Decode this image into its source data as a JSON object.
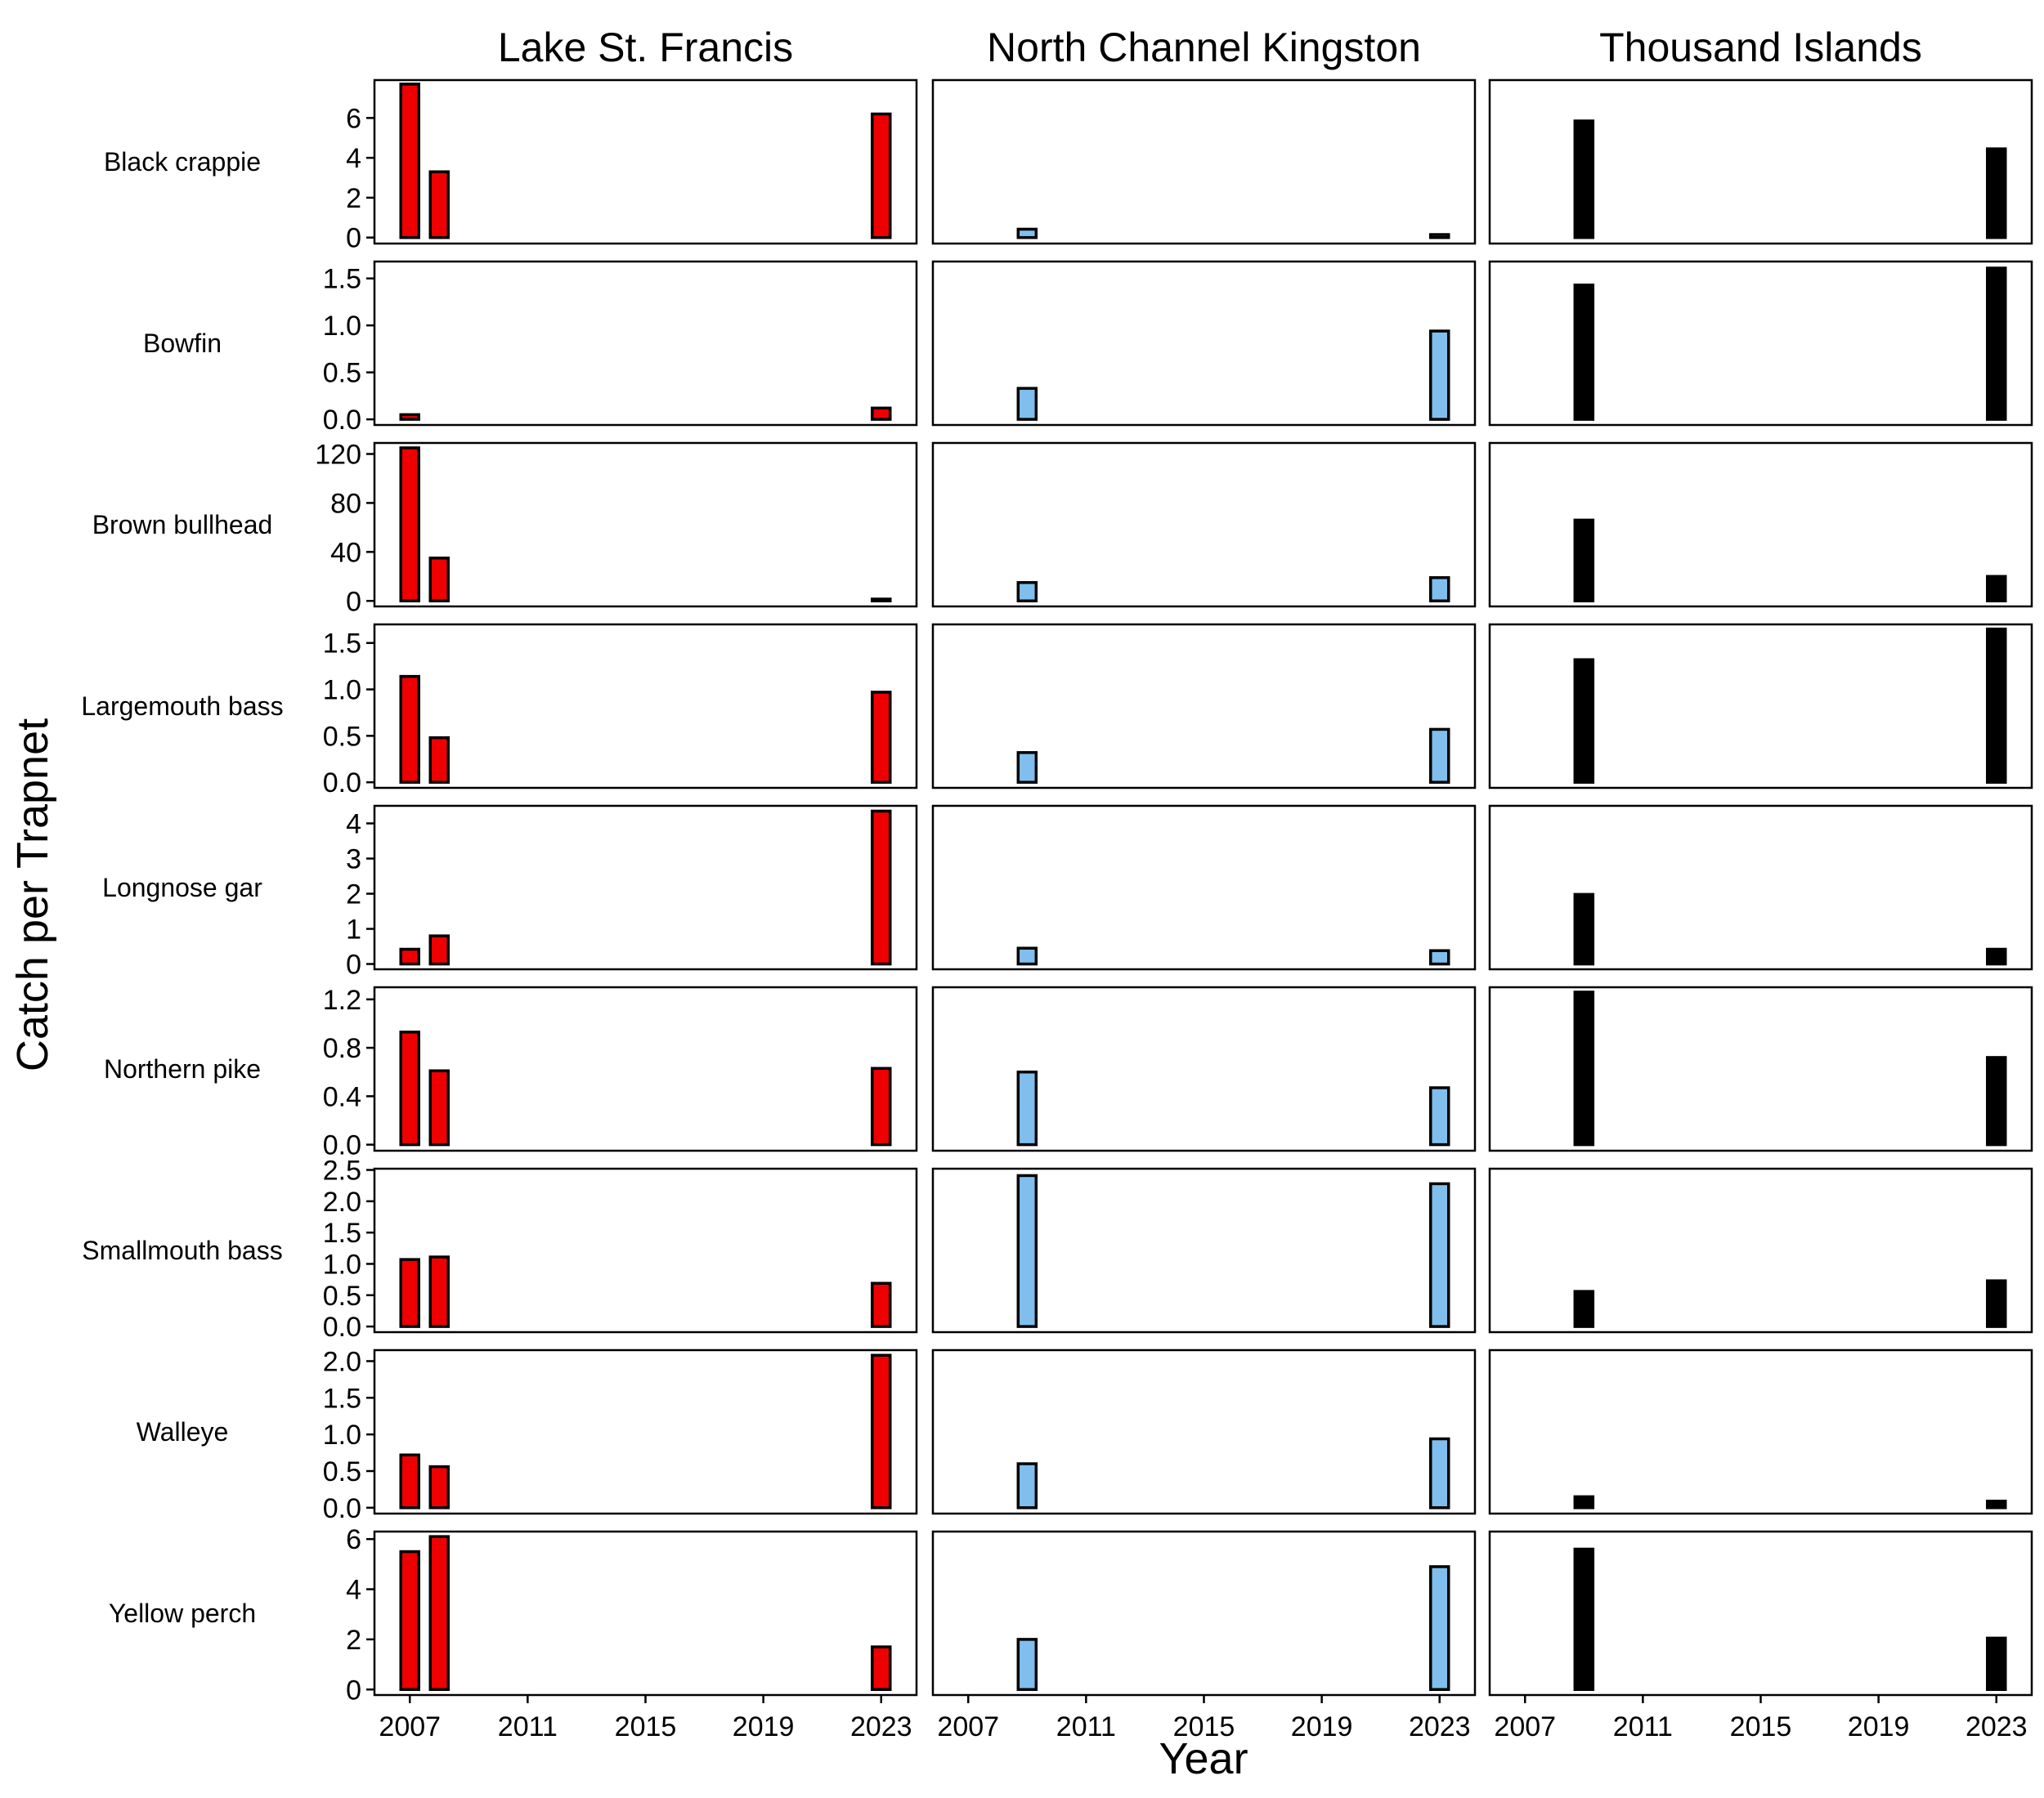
{
  "chart_data": {
    "type": "bar",
    "xlabel": "Year",
    "ylabel": "Catch per Trapnet",
    "x_ticks": [
      2007,
      2011,
      2015,
      2019,
      2023
    ],
    "xlim": [
      2005.8,
      2024.2
    ],
    "columns": [
      "Lake St. Francis",
      "North Channel Kingston",
      "Thousand Islands"
    ],
    "colors": [
      "#ee0000",
      "#80bfed",
      "#000000"
    ],
    "rows": [
      {
        "species": "Black crappie",
        "ylim": [
          -0.3,
          7.9
        ],
        "y_ticks": [
          0,
          2,
          4,
          6
        ],
        "y_tick_labels": [
          "0",
          "2",
          "4",
          "6"
        ],
        "series": [
          {
            "name": "Lake St. Francis",
            "x": [
              2007,
              2008,
              2023
            ],
            "values": [
              7.7,
              3.3,
              6.2
            ]
          },
          {
            "name": "North Channel Kingston",
            "x": [
              2009,
              2023
            ],
            "values": [
              0.42,
              0.15
            ]
          },
          {
            "name": "Thousand Islands",
            "x": [
              2009,
              2023
            ],
            "values": [
              5.85,
              4.45
            ]
          }
        ]
      },
      {
        "species": "Bowfin",
        "ylim": [
          -0.06,
          1.68
        ],
        "y_ticks": [
          0,
          0.5,
          1,
          1.5
        ],
        "y_tick_labels": [
          "0.0",
          "0.5",
          "1.0",
          "1.5"
        ],
        "series": [
          {
            "name": "Lake St. Francis",
            "x": [
              2007,
              2023
            ],
            "values": [
              0.05,
              0.12
            ]
          },
          {
            "name": "North Channel Kingston",
            "x": [
              2009,
              2023
            ],
            "values": [
              0.33,
              0.94
            ]
          },
          {
            "name": "Thousand Islands",
            "x": [
              2009,
              2023
            ],
            "values": [
              1.43,
              1.61
            ]
          }
        ]
      },
      {
        "species": "Brown bullhead",
        "ylim": [
          -4.5,
          129
        ],
        "y_ticks": [
          0,
          40,
          80,
          120
        ],
        "y_tick_labels": [
          "0",
          "40",
          "80",
          "120"
        ],
        "series": [
          {
            "name": "Lake St. Francis",
            "x": [
              2007,
              2008,
              2023
            ],
            "values": [
              125,
              35,
              1.5
            ]
          },
          {
            "name": "North Channel Kingston",
            "x": [
              2009,
              2023
            ],
            "values": [
              15,
              19
            ]
          },
          {
            "name": "Thousand Islands",
            "x": [
              2009,
              2023
            ],
            "values": [
              66,
              20
            ]
          }
        ]
      },
      {
        "species": "Largemouth bass",
        "ylim": [
          -0.06,
          1.7
        ],
        "y_ticks": [
          0,
          0.5,
          1,
          1.5
        ],
        "y_tick_labels": [
          "0.0",
          "0.5",
          "1.0",
          "1.5"
        ],
        "series": [
          {
            "name": "Lake St. Francis",
            "x": [
              2007,
              2008,
              2023
            ],
            "values": [
              1.14,
              0.48,
              0.97
            ]
          },
          {
            "name": "North Channel Kingston",
            "x": [
              2009,
              2023
            ],
            "values": [
              0.32,
              0.57
            ]
          },
          {
            "name": "Thousand Islands",
            "x": [
              2009,
              2023
            ],
            "values": [
              1.32,
              1.65
            ]
          }
        ]
      },
      {
        "species": "Longnose gar",
        "ylim": [
          -0.15,
          4.5
        ],
        "y_ticks": [
          0,
          1,
          2,
          3,
          4
        ],
        "y_tick_labels": [
          "0",
          "1",
          "2",
          "3",
          "4"
        ],
        "series": [
          {
            "name": "Lake St. Francis",
            "x": [
              2007,
              2008,
              2023
            ],
            "values": [
              0.42,
              0.8,
              4.35
            ]
          },
          {
            "name": "North Channel Kingston",
            "x": [
              2009,
              2023
            ],
            "values": [
              0.45,
              0.38
            ]
          },
          {
            "name": "Thousand Islands",
            "x": [
              2009,
              2023
            ],
            "values": [
              1.98,
              0.42
            ]
          }
        ]
      },
      {
        "species": "Northern pike",
        "ylim": [
          -0.05,
          1.3
        ],
        "y_ticks": [
          0,
          0.4,
          0.8,
          1.2
        ],
        "y_tick_labels": [
          "0.0",
          "0.4",
          "0.8",
          "1.2"
        ],
        "series": [
          {
            "name": "Lake St. Francis",
            "x": [
              2007,
              2008,
              2023
            ],
            "values": [
              0.93,
              0.61,
              0.63
            ]
          },
          {
            "name": "North Channel Kingston",
            "x": [
              2009,
              2023
            ],
            "values": [
              0.6,
              0.47
            ]
          },
          {
            "name": "Thousand Islands",
            "x": [
              2009,
              2023
            ],
            "values": [
              1.26,
              0.72
            ]
          }
        ]
      },
      {
        "species": "Smallmouth bass",
        "ylim": [
          -0.09,
          2.52
        ],
        "y_ticks": [
          0,
          0.5,
          1,
          1.5,
          2,
          2.5
        ],
        "y_tick_labels": [
          "0.0",
          "0.5",
          "1.0",
          "1.5",
          "2.0",
          "2.5"
        ],
        "series": [
          {
            "name": "Lake St. Francis",
            "x": [
              2007,
              2008,
              2023
            ],
            "values": [
              1.07,
              1.11,
              0.69
            ]
          },
          {
            "name": "North Channel Kingston",
            "x": [
              2009,
              2023
            ],
            "values": [
              2.41,
              2.28
            ]
          },
          {
            "name": "Thousand Islands",
            "x": [
              2009,
              2023
            ],
            "values": [
              0.56,
              0.73
            ]
          }
        ]
      },
      {
        "species": "Walleye",
        "ylim": [
          -0.08,
          2.15
        ],
        "y_ticks": [
          0,
          0.5,
          1,
          1.5,
          2
        ],
        "y_tick_labels": [
          "0.0",
          "0.5",
          "1.0",
          "1.5",
          "2.0"
        ],
        "series": [
          {
            "name": "Lake St. Francis",
            "x": [
              2007,
              2008,
              2023
            ],
            "values": [
              0.72,
              0.56,
              2.08
            ]
          },
          {
            "name": "North Channel Kingston",
            "x": [
              2009,
              2023
            ],
            "values": [
              0.6,
              0.94
            ]
          },
          {
            "name": "Thousand Islands",
            "x": [
              2009,
              2023
            ],
            "values": [
              0.15,
              0.09
            ]
          }
        ]
      },
      {
        "species": "Yellow perch",
        "ylim": [
          -0.22,
          6.3
        ],
        "y_ticks": [
          0,
          2,
          4,
          6
        ],
        "y_tick_labels": [
          "0",
          "2",
          "4",
          "6"
        ],
        "series": [
          {
            "name": "Lake St. Francis",
            "x": [
              2007,
              2008,
              2023
            ],
            "values": [
              5.5,
              6.1,
              1.7
            ]
          },
          {
            "name": "North Channel Kingston",
            "x": [
              2009,
              2023
            ],
            "values": [
              2.0,
              4.9
            ]
          },
          {
            "name": "Thousand Islands",
            "x": [
              2009,
              2023
            ],
            "values": [
              5.6,
              2.05
            ]
          }
        ]
      }
    ]
  }
}
